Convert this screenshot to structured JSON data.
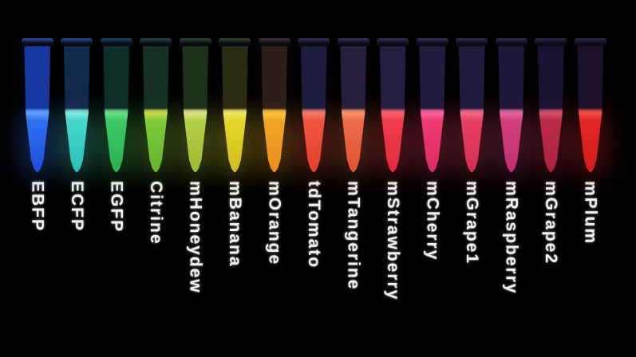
{
  "scene": {
    "description": "Fifteen microcentrifuge tubes of purified fluorescent proteins glowing under UV illumination on a black background, each labeled vertically below the tube",
    "background_color": "#000000",
    "label_text_color": "#f2f2f2",
    "tube_count": 15
  },
  "tubes": [
    {
      "label": "EBFP",
      "liquid": "#2f6ff2",
      "liquid_deep": "#1d4ed8",
      "surface": "#5fa0ff",
      "upper": "#16379e",
      "rim": "#2b4fae"
    },
    {
      "label": "ECFP",
      "liquid": "#46d7cc",
      "liquid_deep": "#2bbfb8",
      "surface": "#86e9df",
      "upper": "#122a4e",
      "rim": "#28539c"
    },
    {
      "label": "EGFP",
      "liquid": "#3cc968",
      "liquid_deep": "#2aae52",
      "surface": "#6ddc8a",
      "upper": "#0e2e28",
      "rim": "#1e4a6e"
    },
    {
      "label": "Citrine",
      "liquid": "#7ecc3a",
      "liquid_deep": "#66b42c",
      "surface": "#c9d94e",
      "upper": "#163021",
      "rim": "#234f46"
    },
    {
      "label": "mHoneydew",
      "liquid": "#b3cf45",
      "liquid_deep": "#9cba35",
      "surface": "#e3e388",
      "upper": "#1c311b",
      "rim": "#2c5038"
    },
    {
      "label": "mBanana",
      "liquid": "#e6d62a",
      "liquid_deep": "#cdbd1f",
      "surface": "#efe56a",
      "upper": "#2c2c13",
      "rim": "#3e4a2c"
    },
    {
      "label": "mOrange",
      "liquid": "#f2a526",
      "liquid_deep": "#ea8c1e",
      "surface": "#f9c43c",
      "upper": "#2f1d17",
      "rim": "#46323a"
    },
    {
      "label": "tdTomato",
      "liquid": "#f2553f",
      "liquid_deep": "#e4402c",
      "surface": "#ee7a6e",
      "upper": "#1d1b3e",
      "rim": "#3c3260"
    },
    {
      "label": "mTangerine",
      "liquid": "#ee6b46",
      "liquid_deep": "#de5433",
      "surface": "#f5946a",
      "upper": "#271e3c",
      "rim": "#3c3260"
    },
    {
      "label": "mStrawberry",
      "liquid": "#f23c4d",
      "liquid_deep": "#e02a3e",
      "surface": "#f6646e",
      "upper": "#241d42",
      "rim": "#3a3160"
    },
    {
      "label": "mCherry",
      "liquid": "#f03a73",
      "liquid_deep": "#dd2a62",
      "surface": "#f76798",
      "upper": "#221b40",
      "rim": "#3a3160"
    },
    {
      "label": "mGrape1",
      "liquid": "#e73f61",
      "liquid_deep": "#d32e50",
      "surface": "#ef6d88",
      "upper": "#201a3e",
      "rim": "#383058"
    },
    {
      "label": "mRaspberry",
      "liquid": "#d23f7f",
      "liquid_deep": "#bf2f6e",
      "surface": "#e1689c",
      "upper": "#1e1638",
      "rim": "#342c54"
    },
    {
      "label": "mGrape2",
      "liquid": "#bd2b49",
      "liquid_deep": "#a82240",
      "surface": "#d1536a",
      "upper": "#1b1232",
      "rim": "#322a50"
    },
    {
      "label": "mPlum",
      "liquid": "#e42525",
      "liquid_deep": "#d01d1d",
      "surface": "#f04f46",
      "upper": "#1d1129",
      "rim": "#30284c"
    }
  ]
}
